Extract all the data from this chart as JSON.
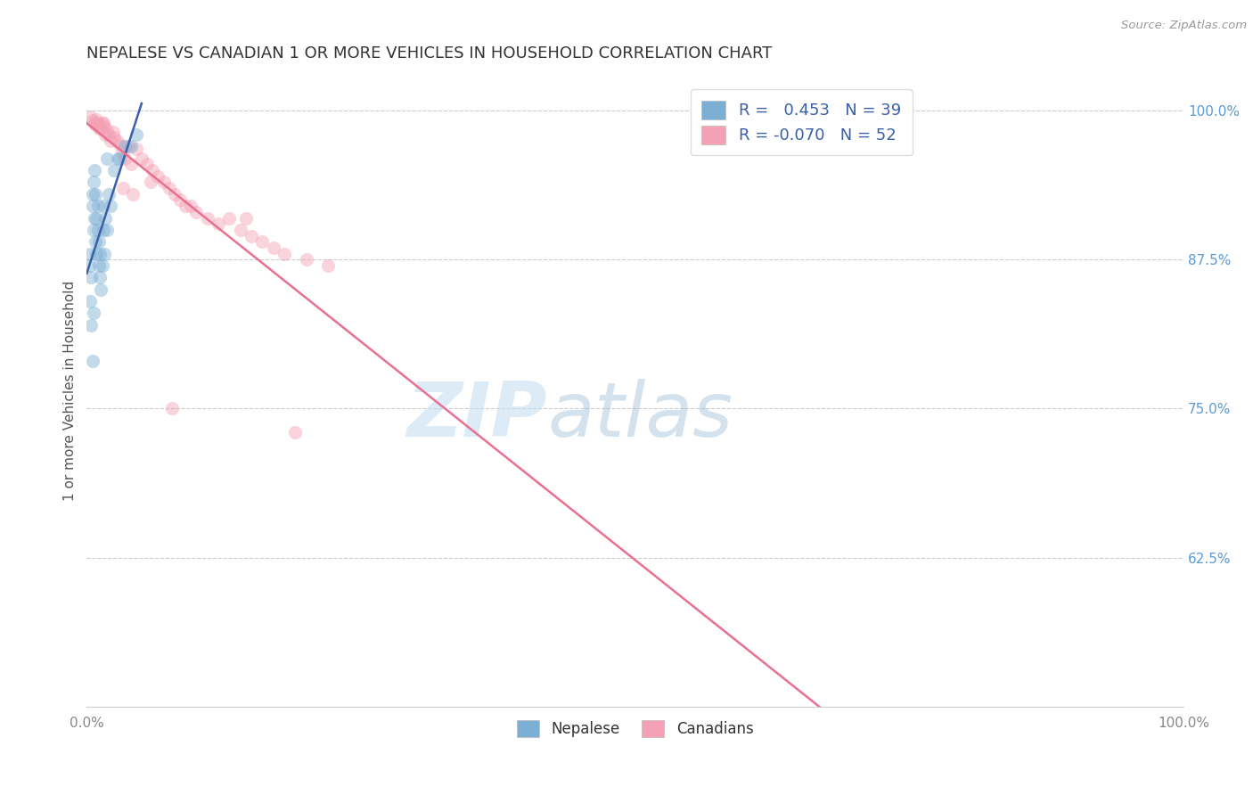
{
  "title": "NEPALESE VS CANADIAN 1 OR MORE VEHICLES IN HOUSEHOLD CORRELATION CHART",
  "source": "Source: ZipAtlas.com",
  "ylabel": "1 or more Vehicles in Household",
  "xlim": [
    0.0,
    100.0
  ],
  "ylim": [
    50.0,
    103.0
  ],
  "ytick_labels": [
    "62.5%",
    "75.0%",
    "87.5%",
    "100.0%"
  ],
  "ytick_values": [
    62.5,
    75.0,
    87.5,
    100.0
  ],
  "xtick_labels": [
    "0.0%",
    "100.0%"
  ],
  "blue_color": "#7bafd4",
  "pink_color": "#f4a0b5",
  "blue_line_color": "#3a5fa8",
  "pink_line_color": "#e87090",
  "legend_blue_r": "0.453",
  "legend_blue_n": "39",
  "legend_pink_r": "-0.070",
  "legend_pink_n": "52",
  "nepalese_x": [
    0.2,
    0.3,
    0.4,
    0.5,
    0.5,
    0.6,
    0.6,
    0.7,
    0.7,
    0.8,
    0.8,
    0.9,
    0.9,
    1.0,
    1.0,
    1.1,
    1.1,
    1.2,
    1.2,
    1.3,
    1.4,
    1.5,
    1.5,
    1.6,
    1.7,
    1.8,
    2.0,
    2.2,
    2.5,
    2.8,
    3.0,
    3.5,
    4.0,
    4.5,
    0.3,
    0.4,
    0.6,
    1.8,
    0.5
  ],
  "nepalese_y": [
    87,
    88,
    86,
    92,
    93,
    90,
    94,
    91,
    95,
    89,
    93,
    88,
    91,
    90,
    92,
    89,
    87,
    86,
    88,
    85,
    87,
    90,
    92,
    88,
    91,
    90,
    93,
    92,
    95,
    96,
    96,
    97,
    97,
    98,
    84,
    82,
    83,
    96,
    79
  ],
  "canadian_x": [
    0.3,
    0.5,
    0.7,
    0.8,
    0.9,
    1.0,
    1.2,
    1.3,
    1.5,
    1.6,
    1.8,
    2.0,
    2.2,
    2.4,
    2.5,
    2.7,
    3.0,
    3.2,
    3.5,
    3.8,
    4.0,
    4.5,
    5.0,
    5.5,
    6.0,
    6.5,
    7.0,
    7.5,
    8.0,
    8.5,
    9.0,
    10.0,
    11.0,
    12.0,
    13.0,
    14.0,
    15.0,
    16.0,
    17.0,
    18.0,
    20.0,
    22.0,
    3.3,
    4.2,
    5.8,
    9.5,
    14.5,
    1.1,
    1.4,
    1.7,
    7.8,
    19.0
  ],
  "canadian_y": [
    99.5,
    99.2,
    99.0,
    98.8,
    99.3,
    99.0,
    98.8,
    98.5,
    99.0,
    98.7,
    98.4,
    98.0,
    97.5,
    98.2,
    97.8,
    97.5,
    97.2,
    96.5,
    96.0,
    97.0,
    95.5,
    96.8,
    96.0,
    95.5,
    95.0,
    94.5,
    94.0,
    93.5,
    93.0,
    92.5,
    92.0,
    91.5,
    91.0,
    90.5,
    91.0,
    90.0,
    89.5,
    89.0,
    88.5,
    88.0,
    87.5,
    87.0,
    93.5,
    93.0,
    94.0,
    92.0,
    91.0,
    98.5,
    99.0,
    98.0,
    75.0,
    73.0
  ],
  "watermark_zip": "ZIP",
  "watermark_atlas": "atlas",
  "background_color": "#ffffff",
  "grid_color": "#cccccc",
  "title_color": "#333333",
  "axis_label_color": "#555555",
  "tick_label_color_right": "#5b9bd5",
  "tick_label_color_bottom": "#888888",
  "marker_size": 120,
  "marker_alpha": 0.45
}
